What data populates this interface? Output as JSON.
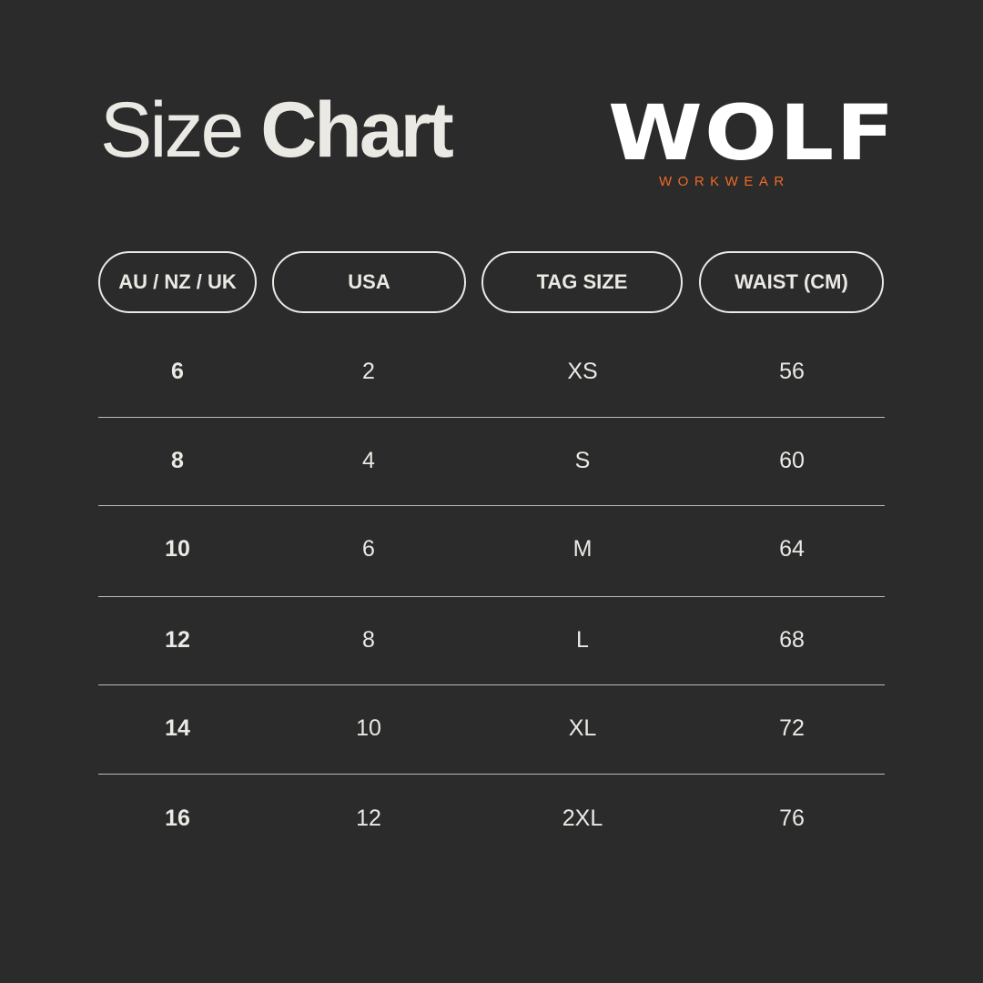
{
  "title": {
    "light": "Size",
    "bold": "Chart"
  },
  "logo": {
    "brand": "WOLF",
    "tagline": "WORKWEAR",
    "accent_color": "#ee6a26"
  },
  "headers": [
    "AU / NZ / UK",
    "USA",
    "TAG SIZE",
    "WAIST (CM)"
  ],
  "rows": [
    [
      "6",
      "2",
      "XS",
      "56"
    ],
    [
      "8",
      "4",
      "S",
      "60"
    ],
    [
      "10",
      "6",
      "M",
      "64"
    ],
    [
      "12",
      "8",
      "L",
      "68"
    ],
    [
      "14",
      "10",
      "XL",
      "72"
    ],
    [
      "16",
      "12",
      "2XL",
      "76"
    ]
  ],
  "colors": {
    "background": "#2b2b2b",
    "text": "#ebe9e4"
  }
}
